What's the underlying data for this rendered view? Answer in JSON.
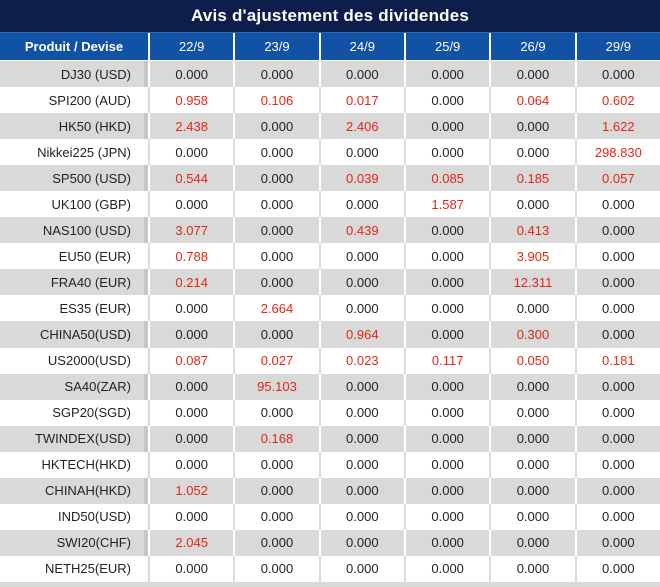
{
  "title": "Avis d'ajustement des dividendes",
  "colors": {
    "title_bg": "#0d1e4a",
    "header_bg": "#1252a5",
    "row_gray": "#d9d9d9",
    "value_black": "#222222",
    "value_red": "#e42617"
  },
  "table": {
    "header": {
      "product_column": "Produit / Devise",
      "dates": [
        "22/9",
        "23/9",
        "24/9",
        "25/9",
        "26/9",
        "29/9"
      ]
    },
    "rows": [
      {
        "product": "DJ30 (USD)",
        "values": [
          "0.000",
          "0.000",
          "0.000",
          "0.000",
          "0.000",
          "0.000"
        ]
      },
      {
        "product": "SPI200 (AUD)",
        "values": [
          "0.958",
          "0.106",
          "0.017",
          "0.000",
          "0.064",
          "0.602"
        ]
      },
      {
        "product": "HK50 (HKD)",
        "values": [
          "2.438",
          "0.000",
          "2.406",
          "0.000",
          "0.000",
          "1.622"
        ]
      },
      {
        "product": "Nikkei225 (JPN)",
        "values": [
          "0.000",
          "0.000",
          "0.000",
          "0.000",
          "0.000",
          "298.830"
        ]
      },
      {
        "product": "SP500 (USD)",
        "values": [
          "0.544",
          "0.000",
          "0.039",
          "0.085",
          "0.185",
          "0.057"
        ]
      },
      {
        "product": "UK100 (GBP)",
        "values": [
          "0.000",
          "0.000",
          "0.000",
          "1.587",
          "0.000",
          "0.000"
        ]
      },
      {
        "product": "NAS100 (USD)",
        "values": [
          "3.077",
          "0.000",
          "0.439",
          "0.000",
          "0.413",
          "0.000"
        ]
      },
      {
        "product": "EU50 (EUR)",
        "values": [
          "0.788",
          "0.000",
          "0.000",
          "0.000",
          "3.905",
          "0.000"
        ]
      },
      {
        "product": "FRA40 (EUR)",
        "values": [
          "0.214",
          "0.000",
          "0.000",
          "0.000",
          "12.311",
          "0.000"
        ]
      },
      {
        "product": "ES35 (EUR)",
        "values": [
          "0.000",
          "2.664",
          "0.000",
          "0.000",
          "0.000",
          "0.000"
        ]
      },
      {
        "product": "CHINA50(USD)",
        "values": [
          "0.000",
          "0.000",
          "0.964",
          "0.000",
          "0.300",
          "0.000"
        ]
      },
      {
        "product": "US2000(USD)",
        "values": [
          "0.087",
          "0.027",
          "0.023",
          "0.117",
          "0.050",
          "0.181"
        ]
      },
      {
        "product": "SA40(ZAR)",
        "values": [
          "0.000",
          "95.103",
          "0.000",
          "0.000",
          "0.000",
          "0.000"
        ]
      },
      {
        "product": "SGP20(SGD)",
        "values": [
          "0.000",
          "0.000",
          "0.000",
          "0.000",
          "0.000",
          "0.000"
        ]
      },
      {
        "product": "TWINDEX(USD)",
        "values": [
          "0.000",
          "0.168",
          "0.000",
          "0.000",
          "0.000",
          "0.000"
        ]
      },
      {
        "product": "HKTECH(HKD)",
        "values": [
          "0.000",
          "0.000",
          "0.000",
          "0.000",
          "0.000",
          "0.000"
        ]
      },
      {
        "product": "CHINAH(HKD)",
        "values": [
          "1.052",
          "0.000",
          "0.000",
          "0.000",
          "0.000",
          "0.000"
        ]
      },
      {
        "product": "IND50(USD)",
        "values": [
          "0.000",
          "0.000",
          "0.000",
          "0.000",
          "0.000",
          "0.000"
        ]
      },
      {
        "product": "SWI20(CHF)",
        "values": [
          "2.045",
          "0.000",
          "0.000",
          "0.000",
          "0.000",
          "0.000"
        ]
      },
      {
        "product": "NETH25(EUR)",
        "values": [
          "0.000",
          "0.000",
          "0.000",
          "0.000",
          "0.000",
          "0.000"
        ]
      }
    ]
  }
}
